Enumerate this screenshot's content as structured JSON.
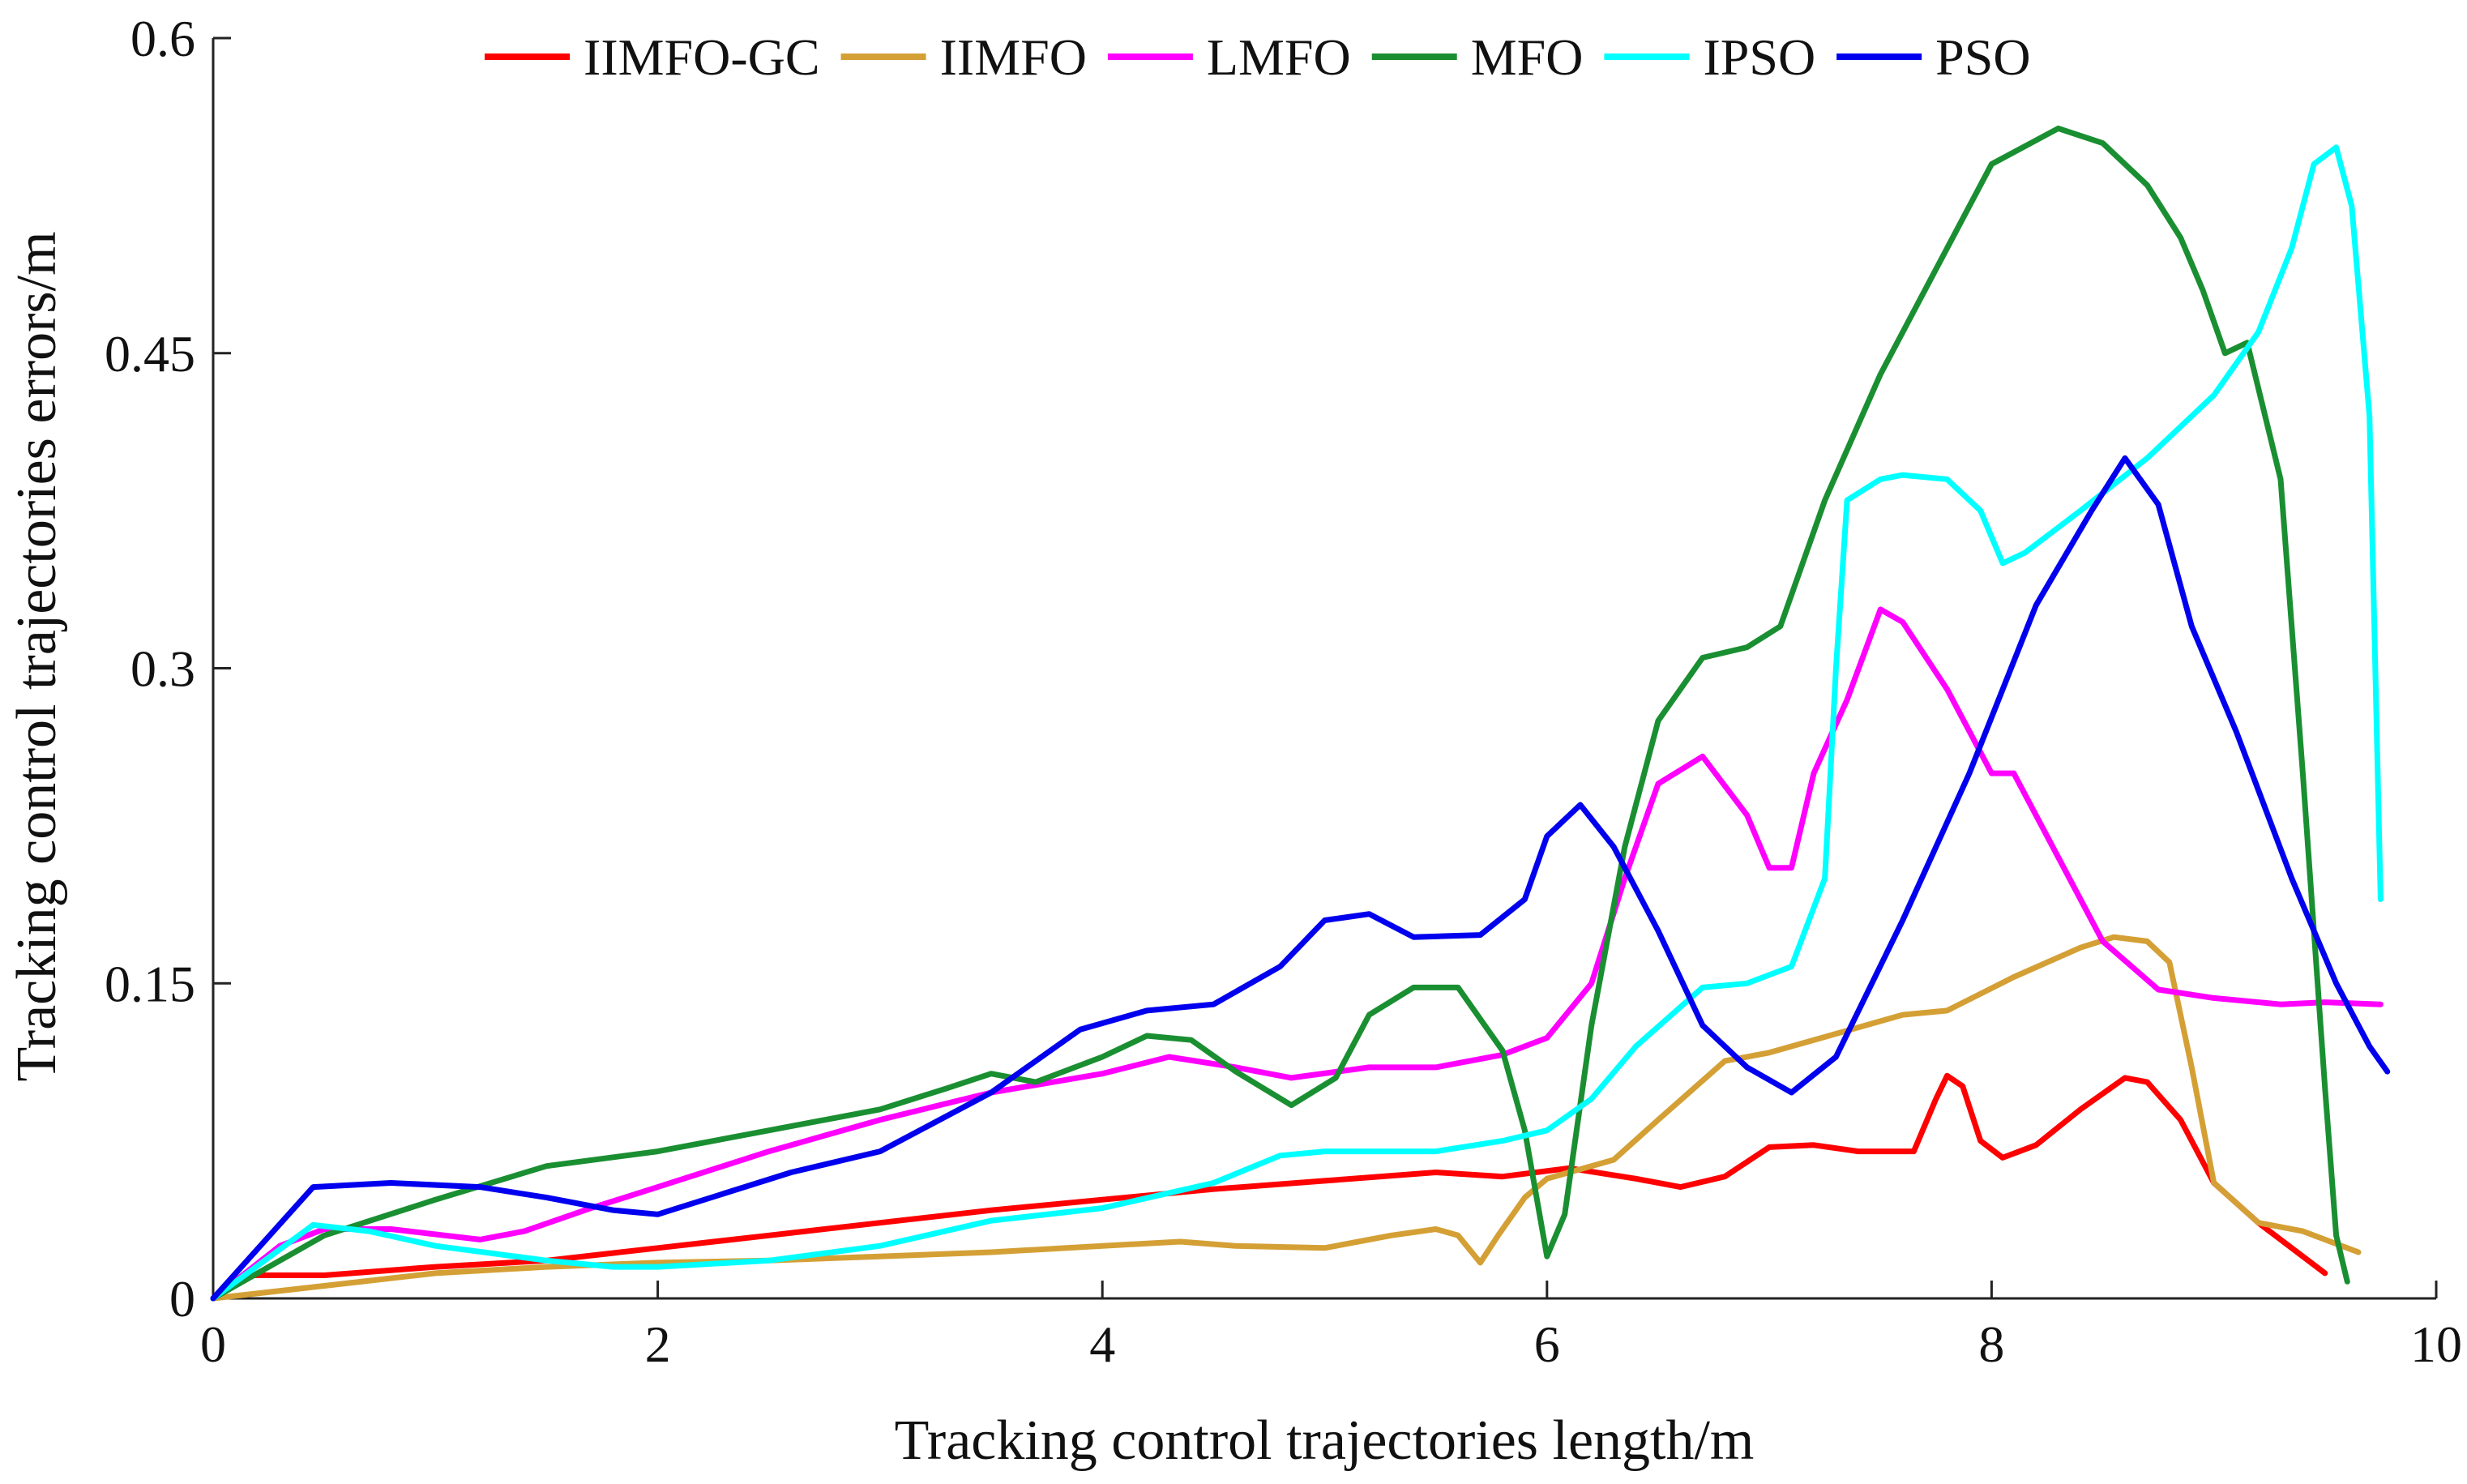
{
  "chart_data": {
    "type": "line",
    "title": "",
    "xlabel": "Tracking control trajectories length/m",
    "ylabel": "Tracking control trajectories errors/m",
    "xlim": [
      0,
      10
    ],
    "ylim": [
      0,
      0.6
    ],
    "xticks": [
      0,
      2,
      4,
      6,
      8,
      10
    ],
    "xtick_labels": [
      "0",
      "2",
      "4",
      "6",
      "8",
      "10"
    ],
    "yticks": [
      0,
      0.15,
      0.3,
      0.45,
      0.6
    ],
    "ytick_labels": [
      "0",
      "0.15",
      "0.3",
      "0.45",
      "0.6"
    ],
    "grid": false,
    "legend_position": "top",
    "series": [
      {
        "name": "IIMFO-GC",
        "color": "#ff0000",
        "points": [
          [
            0,
            0
          ],
          [
            0.15,
            0.011
          ],
          [
            0.5,
            0.011
          ],
          [
            1,
            0.015
          ],
          [
            1.5,
            0.018
          ],
          [
            2,
            0.024
          ],
          [
            2.5,
            0.03
          ],
          [
            3,
            0.036
          ],
          [
            3.5,
            0.042
          ],
          [
            4,
            0.047
          ],
          [
            4.5,
            0.052
          ],
          [
            5,
            0.056
          ],
          [
            5.5,
            0.06
          ],
          [
            5.8,
            0.058
          ],
          [
            6.1,
            0.062
          ],
          [
            6.4,
            0.057
          ],
          [
            6.6,
            0.053
          ],
          [
            6.8,
            0.058
          ],
          [
            7,
            0.072
          ],
          [
            7.2,
            0.073
          ],
          [
            7.4,
            0.07
          ],
          [
            7.65,
            0.07
          ],
          [
            7.75,
            0.095
          ],
          [
            7.8,
            0.106
          ],
          [
            7.87,
            0.101
          ],
          [
            7.95,
            0.075
          ],
          [
            8.05,
            0.067
          ],
          [
            8.2,
            0.073
          ],
          [
            8.4,
            0.09
          ],
          [
            8.6,
            0.105
          ],
          [
            8.7,
            0.103
          ],
          [
            8.85,
            0.085
          ],
          [
            9,
            0.055
          ],
          [
            9.2,
            0.036
          ],
          [
            9.4,
            0.02
          ],
          [
            9.5,
            0.012
          ]
        ]
      },
      {
        "name": "IIMFO",
        "color": "#d4a035",
        "points": [
          [
            0,
            0
          ],
          [
            0.5,
            0.006
          ],
          [
            1,
            0.012
          ],
          [
            1.5,
            0.015
          ],
          [
            2,
            0.017
          ],
          [
            2.5,
            0.018
          ],
          [
            3,
            0.02
          ],
          [
            3.5,
            0.022
          ],
          [
            4,
            0.025
          ],
          [
            4.35,
            0.027
          ],
          [
            4.6,
            0.025
          ],
          [
            5,
            0.024
          ],
          [
            5.3,
            0.03
          ],
          [
            5.5,
            0.033
          ],
          [
            5.6,
            0.03
          ],
          [
            5.7,
            0.017
          ],
          [
            5.78,
            0.03
          ],
          [
            5.9,
            0.048
          ],
          [
            6,
            0.057
          ],
          [
            6.3,
            0.066
          ],
          [
            6.5,
            0.085
          ],
          [
            6.8,
            0.113
          ],
          [
            7,
            0.117
          ],
          [
            7.3,
            0.126
          ],
          [
            7.6,
            0.135
          ],
          [
            7.8,
            0.137
          ],
          [
            8.1,
            0.153
          ],
          [
            8.4,
            0.167
          ],
          [
            8.55,
            0.172
          ],
          [
            8.7,
            0.17
          ],
          [
            8.8,
            0.16
          ],
          [
            8.9,
            0.11
          ],
          [
            9,
            0.055
          ],
          [
            9.2,
            0.036
          ],
          [
            9.4,
            0.032
          ],
          [
            9.65,
            0.022
          ]
        ]
      },
      {
        "name": "LMFO",
        "color": "#ff00ff",
        "points": [
          [
            0,
            0
          ],
          [
            0.3,
            0.025
          ],
          [
            0.5,
            0.033
          ],
          [
            0.8,
            0.033
          ],
          [
            1.2,
            0.028
          ],
          [
            1.4,
            0.032
          ],
          [
            1.7,
            0.043
          ],
          [
            2,
            0.053
          ],
          [
            2.5,
            0.07
          ],
          [
            3,
            0.085
          ],
          [
            3.5,
            0.098
          ],
          [
            4,
            0.107
          ],
          [
            4.3,
            0.115
          ],
          [
            4.6,
            0.11
          ],
          [
            4.85,
            0.105
          ],
          [
            5.2,
            0.11
          ],
          [
            5.5,
            0.11
          ],
          [
            5.8,
            0.116
          ],
          [
            6,
            0.124
          ],
          [
            6.2,
            0.15
          ],
          [
            6.35,
            0.2
          ],
          [
            6.5,
            0.245
          ],
          [
            6.7,
            0.258
          ],
          [
            6.9,
            0.23
          ],
          [
            7,
            0.205
          ],
          [
            7.1,
            0.205
          ],
          [
            7.2,
            0.25
          ],
          [
            7.35,
            0.285
          ],
          [
            7.5,
            0.328
          ],
          [
            7.6,
            0.322
          ],
          [
            7.8,
            0.29
          ],
          [
            8,
            0.25
          ],
          [
            8.1,
            0.25
          ],
          [
            8.3,
            0.21
          ],
          [
            8.5,
            0.17
          ],
          [
            8.75,
            0.147
          ],
          [
            9,
            0.143
          ],
          [
            9.3,
            0.14
          ],
          [
            9.5,
            0.141
          ],
          [
            9.75,
            0.14
          ]
        ]
      },
      {
        "name": "MFO",
        "color": "#1a8f32",
        "points": [
          [
            0,
            0
          ],
          [
            0.5,
            0.03
          ],
          [
            1,
            0.047
          ],
          [
            1.5,
            0.063
          ],
          [
            2,
            0.07
          ],
          [
            2.5,
            0.08
          ],
          [
            3,
            0.09
          ],
          [
            3.3,
            0.1
          ],
          [
            3.5,
            0.107
          ],
          [
            3.7,
            0.103
          ],
          [
            4,
            0.115
          ],
          [
            4.2,
            0.125
          ],
          [
            4.4,
            0.123
          ],
          [
            4.6,
            0.108
          ],
          [
            4.85,
            0.092
          ],
          [
            5.05,
            0.105
          ],
          [
            5.2,
            0.135
          ],
          [
            5.4,
            0.148
          ],
          [
            5.6,
            0.148
          ],
          [
            5.8,
            0.118
          ],
          [
            5.9,
            0.08
          ],
          [
            6,
            0.02
          ],
          [
            6.08,
            0.04
          ],
          [
            6.2,
            0.13
          ],
          [
            6.35,
            0.215
          ],
          [
            6.5,
            0.275
          ],
          [
            6.7,
            0.305
          ],
          [
            6.9,
            0.31
          ],
          [
            7.05,
            0.32
          ],
          [
            7.25,
            0.38
          ],
          [
            7.5,
            0.44
          ],
          [
            7.75,
            0.49
          ],
          [
            8,
            0.54
          ],
          [
            8.3,
            0.557
          ],
          [
            8.5,
            0.55
          ],
          [
            8.7,
            0.53
          ],
          [
            8.85,
            0.505
          ],
          [
            8.95,
            0.48
          ],
          [
            9.05,
            0.45
          ],
          [
            9.15,
            0.455
          ],
          [
            9.3,
            0.39
          ],
          [
            9.4,
            0.25
          ],
          [
            9.5,
            0.1
          ],
          [
            9.55,
            0.03
          ],
          [
            9.6,
            0.008
          ]
        ]
      },
      {
        "name": "IPSO",
        "color": "#00ffff",
        "points": [
          [
            0,
            0
          ],
          [
            0.45,
            0.035
          ],
          [
            0.7,
            0.032
          ],
          [
            1,
            0.025
          ],
          [
            1.5,
            0.018
          ],
          [
            1.8,
            0.015
          ],
          [
            2,
            0.015
          ],
          [
            2.5,
            0.018
          ],
          [
            3,
            0.025
          ],
          [
            3.5,
            0.037
          ],
          [
            4,
            0.043
          ],
          [
            4.5,
            0.055
          ],
          [
            4.8,
            0.068
          ],
          [
            5,
            0.07
          ],
          [
            5.5,
            0.07
          ],
          [
            5.8,
            0.075
          ],
          [
            6,
            0.08
          ],
          [
            6.2,
            0.095
          ],
          [
            6.4,
            0.12
          ],
          [
            6.7,
            0.148
          ],
          [
            6.9,
            0.15
          ],
          [
            7.1,
            0.158
          ],
          [
            7.25,
            0.2
          ],
          [
            7.3,
            0.3
          ],
          [
            7.35,
            0.38
          ],
          [
            7.5,
            0.39
          ],
          [
            7.6,
            0.392
          ],
          [
            7.8,
            0.39
          ],
          [
            7.95,
            0.375
          ],
          [
            8.05,
            0.35
          ],
          [
            8.15,
            0.355
          ],
          [
            8.4,
            0.375
          ],
          [
            8.7,
            0.4
          ],
          [
            9,
            0.43
          ],
          [
            9.2,
            0.46
          ],
          [
            9.35,
            0.5
          ],
          [
            9.45,
            0.54
          ],
          [
            9.55,
            0.548
          ],
          [
            9.62,
            0.52
          ],
          [
            9.7,
            0.42
          ],
          [
            9.75,
            0.19
          ]
        ]
      },
      {
        "name": "PSO",
        "color": "#0000ee",
        "points": [
          [
            0,
            0
          ],
          [
            0.45,
            0.053
          ],
          [
            0.8,
            0.055
          ],
          [
            1.2,
            0.053
          ],
          [
            1.5,
            0.048
          ],
          [
            1.8,
            0.042
          ],
          [
            2,
            0.04
          ],
          [
            2.3,
            0.05
          ],
          [
            2.6,
            0.06
          ],
          [
            3,
            0.07
          ],
          [
            3.5,
            0.098
          ],
          [
            3.9,
            0.128
          ],
          [
            4.2,
            0.137
          ],
          [
            4.5,
            0.14
          ],
          [
            4.8,
            0.158
          ],
          [
            5,
            0.18
          ],
          [
            5.2,
            0.183
          ],
          [
            5.4,
            0.172
          ],
          [
            5.7,
            0.173
          ],
          [
            5.9,
            0.19
          ],
          [
            6,
            0.22
          ],
          [
            6.15,
            0.235
          ],
          [
            6.3,
            0.215
          ],
          [
            6.5,
            0.175
          ],
          [
            6.7,
            0.13
          ],
          [
            6.9,
            0.11
          ],
          [
            7.1,
            0.098
          ],
          [
            7.3,
            0.115
          ],
          [
            7.6,
            0.18
          ],
          [
            7.9,
            0.25
          ],
          [
            8.2,
            0.33
          ],
          [
            8.45,
            0.375
          ],
          [
            8.6,
            0.4
          ],
          [
            8.75,
            0.378
          ],
          [
            8.9,
            0.32
          ],
          [
            9.1,
            0.27
          ],
          [
            9.35,
            0.2
          ],
          [
            9.55,
            0.15
          ],
          [
            9.7,
            0.12
          ],
          [
            9.78,
            0.108
          ]
        ]
      }
    ]
  }
}
